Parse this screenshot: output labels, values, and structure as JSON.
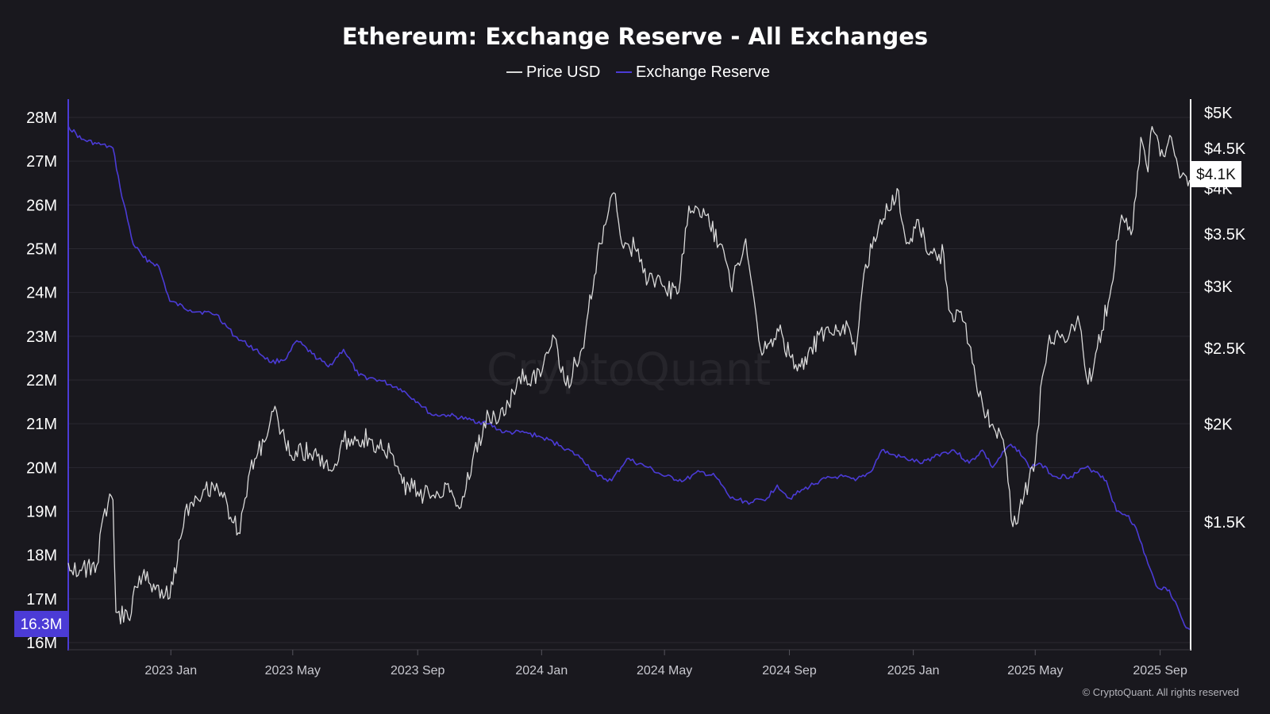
{
  "chart_data": {
    "type": "line",
    "title": "Ethereum: Exchange Reserve - All Exchanges",
    "legend": [
      {
        "name": "Price USD",
        "color": "#d9d9d9"
      },
      {
        "name": "Exchange Reserve",
        "color": "#4b3bd6"
      }
    ],
    "legend_position": "top-center",
    "grid": true,
    "x_axis": {
      "start": "2022-09-22",
      "end": "2025-10-01",
      "ticks": [
        {
          "date": "2023-01-01",
          "label": "2023 Jan"
        },
        {
          "date": "2023-05-01",
          "label": "2023 May"
        },
        {
          "date": "2023-09-01",
          "label": "2023 Sep"
        },
        {
          "date": "2024-01-01",
          "label": "2024 Jan"
        },
        {
          "date": "2024-05-01",
          "label": "2024 May"
        },
        {
          "date": "2024-09-01",
          "label": "2024 Sep"
        },
        {
          "date": "2025-01-01",
          "label": "2025 Jan"
        },
        {
          "date": "2025-05-01",
          "label": "2025 May"
        },
        {
          "date": "2025-09-01",
          "label": "2025 Sep"
        }
      ]
    },
    "y_left": {
      "series": "Exchange Reserve",
      "min": 16000000,
      "max": 28000000,
      "ticks": [
        {
          "value": 16000000,
          "label": "16M"
        },
        {
          "value": 17000000,
          "label": "17M"
        },
        {
          "value": 18000000,
          "label": "18M"
        },
        {
          "value": 19000000,
          "label": "19M"
        },
        {
          "value": 20000000,
          "label": "20M"
        },
        {
          "value": 21000000,
          "label": "21M"
        },
        {
          "value": 22000000,
          "label": "22M"
        },
        {
          "value": 23000000,
          "label": "23M"
        },
        {
          "value": 24000000,
          "label": "24M"
        },
        {
          "value": 25000000,
          "label": "25M"
        },
        {
          "value": 26000000,
          "label": "26M"
        },
        {
          "value": 27000000,
          "label": "27M"
        },
        {
          "value": 28000000,
          "label": "28M"
        }
      ],
      "current_label": "16.3M"
    },
    "y_right": {
      "series": "Price USD",
      "scale": "log",
      "min": 1000,
      "max": 5000,
      "ticks": [
        {
          "value": 1500,
          "label": "$1.5K"
        },
        {
          "value": 2000,
          "label": "$2K"
        },
        {
          "value": 2500,
          "label": "$2.5K"
        },
        {
          "value": 3000,
          "label": "$3K"
        },
        {
          "value": 3500,
          "label": "$3.5K"
        },
        {
          "value": 4000,
          "label": "$4K"
        },
        {
          "value": 4500,
          "label": "$4.5K"
        },
        {
          "value": 5000,
          "label": "$5K"
        }
      ],
      "current_label": "$4.1K"
    },
    "series": [
      {
        "name": "Exchange Reserve",
        "axis": "left",
        "color": "#4b3bd6",
        "points": [
          [
            "2022-09-22",
            27800000
          ],
          [
            "2022-10-05",
            27500000
          ],
          [
            "2022-10-20",
            27400000
          ],
          [
            "2022-11-05",
            27300000
          ],
          [
            "2022-11-12",
            26400000
          ],
          [
            "2022-11-25",
            25100000
          ],
          [
            "2022-12-05",
            24800000
          ],
          [
            "2022-12-20",
            24600000
          ],
          [
            "2022-12-31",
            23800000
          ],
          [
            "2023-01-20",
            23600000
          ],
          [
            "2023-02-15",
            23500000
          ],
          [
            "2023-03-05",
            23000000
          ],
          [
            "2023-03-25",
            22700000
          ],
          [
            "2023-04-10",
            22400000
          ],
          [
            "2023-04-25",
            22500000
          ],
          [
            "2023-05-05",
            22900000
          ],
          [
            "2023-05-20",
            22600000
          ],
          [
            "2023-06-05",
            22300000
          ],
          [
            "2023-06-20",
            22700000
          ],
          [
            "2023-07-05",
            22100000
          ],
          [
            "2023-07-25",
            22000000
          ],
          [
            "2023-08-15",
            21800000
          ],
          [
            "2023-09-01",
            21500000
          ],
          [
            "2023-09-15",
            21200000
          ],
          [
            "2023-10-01",
            21200000
          ],
          [
            "2023-10-20",
            21100000
          ],
          [
            "2023-11-10",
            21000000
          ],
          [
            "2023-11-25",
            20800000
          ],
          [
            "2023-12-15",
            20800000
          ],
          [
            "2023-12-31",
            20700000
          ],
          [
            "2024-01-20",
            20500000
          ],
          [
            "2024-02-10",
            20200000
          ],
          [
            "2024-02-25",
            19800000
          ],
          [
            "2024-03-10",
            19700000
          ],
          [
            "2024-03-25",
            20200000
          ],
          [
            "2024-04-15",
            20000000
          ],
          [
            "2024-05-01",
            19800000
          ],
          [
            "2024-05-20",
            19700000
          ],
          [
            "2024-06-05",
            19900000
          ],
          [
            "2024-06-20",
            19800000
          ],
          [
            "2024-07-05",
            19300000
          ],
          [
            "2024-07-25",
            19200000
          ],
          [
            "2024-08-10",
            19300000
          ],
          [
            "2024-08-20",
            19600000
          ],
          [
            "2024-09-01",
            19300000
          ],
          [
            "2024-09-15",
            19500000
          ],
          [
            "2024-10-01",
            19700000
          ],
          [
            "2024-10-20",
            19800000
          ],
          [
            "2024-11-05",
            19700000
          ],
          [
            "2024-11-20",
            19900000
          ],
          [
            "2024-12-01",
            20400000
          ],
          [
            "2024-12-10",
            20300000
          ],
          [
            "2024-12-25",
            20200000
          ],
          [
            "2025-01-10",
            20100000
          ],
          [
            "2025-01-25",
            20300000
          ],
          [
            "2025-02-10",
            20400000
          ],
          [
            "2025-02-25",
            20100000
          ],
          [
            "2025-03-10",
            20400000
          ],
          [
            "2025-03-20",
            20000000
          ],
          [
            "2025-04-05",
            20500000
          ],
          [
            "2025-04-15",
            20400000
          ],
          [
            "2025-04-25",
            20000000
          ],
          [
            "2025-05-05",
            20100000
          ],
          [
            "2025-05-20",
            19800000
          ],
          [
            "2025-06-05",
            19800000
          ],
          [
            "2025-06-20",
            20000000
          ],
          [
            "2025-07-01",
            19900000
          ],
          [
            "2025-07-10",
            19700000
          ],
          [
            "2025-07-20",
            19000000
          ],
          [
            "2025-08-01",
            18900000
          ],
          [
            "2025-08-10",
            18500000
          ],
          [
            "2025-08-20",
            17800000
          ],
          [
            "2025-08-28",
            17300000
          ],
          [
            "2025-09-10",
            17200000
          ],
          [
            "2025-09-20",
            16700000
          ],
          [
            "2025-09-25",
            16400000
          ],
          [
            "2025-09-30",
            16300000
          ]
        ]
      },
      {
        "name": "Price USD",
        "axis": "right",
        "color": "#d9d9d9",
        "points": [
          [
            "2022-09-22",
            1330
          ],
          [
            "2022-10-05",
            1300
          ],
          [
            "2022-10-20",
            1320
          ],
          [
            "2022-10-28",
            1560
          ],
          [
            "2022-11-05",
            1600
          ],
          [
            "2022-11-08",
            1150
          ],
          [
            "2022-11-20",
            1130
          ],
          [
            "2022-12-01",
            1280
          ],
          [
            "2022-12-15",
            1250
          ],
          [
            "2022-12-31",
            1200
          ],
          [
            "2023-01-15",
            1550
          ],
          [
            "2023-01-25",
            1620
          ],
          [
            "2023-02-15",
            1680
          ],
          [
            "2023-03-10",
            1450
          ],
          [
            "2023-03-20",
            1750
          ],
          [
            "2023-04-15",
            2080
          ],
          [
            "2023-04-25",
            1850
          ],
          [
            "2023-05-10",
            1850
          ],
          [
            "2023-05-25",
            1820
          ],
          [
            "2023-06-10",
            1750
          ],
          [
            "2023-06-20",
            1900
          ],
          [
            "2023-07-01",
            1930
          ],
          [
            "2023-07-15",
            1920
          ],
          [
            "2023-07-25",
            1860
          ],
          [
            "2023-08-05",
            1840
          ],
          [
            "2023-08-17",
            1680
          ],
          [
            "2023-09-01",
            1640
          ],
          [
            "2023-09-15",
            1620
          ],
          [
            "2023-10-01",
            1680
          ],
          [
            "2023-10-12",
            1560
          ],
          [
            "2023-10-25",
            1800
          ],
          [
            "2023-11-10",
            2050
          ],
          [
            "2023-11-25",
            2050
          ],
          [
            "2023-12-10",
            2300
          ],
          [
            "2023-12-31",
            2300
          ],
          [
            "2024-01-12",
            2600
          ],
          [
            "2024-01-25",
            2240
          ],
          [
            "2024-02-10",
            2500
          ],
          [
            "2024-02-28",
            3400
          ],
          [
            "2024-03-12",
            3950
          ],
          [
            "2024-03-20",
            3400
          ],
          [
            "2024-04-05",
            3350
          ],
          [
            "2024-04-15",
            3050
          ],
          [
            "2024-05-01",
            3000
          ],
          [
            "2024-05-15",
            2950
          ],
          [
            "2024-05-25",
            3800
          ],
          [
            "2024-06-10",
            3700
          ],
          [
            "2024-06-25",
            3400
          ],
          [
            "2024-07-05",
            3000
          ],
          [
            "2024-07-20",
            3450
          ],
          [
            "2024-08-05",
            2450
          ],
          [
            "2024-08-20",
            2650
          ],
          [
            "2024-09-01",
            2450
          ],
          [
            "2024-09-15",
            2350
          ],
          [
            "2024-09-30",
            2600
          ],
          [
            "2024-10-15",
            2600
          ],
          [
            "2024-10-30",
            2650
          ],
          [
            "2024-11-05",
            2450
          ],
          [
            "2024-11-15",
            3200
          ],
          [
            "2024-12-01",
            3600
          ],
          [
            "2024-12-16",
            4000
          ],
          [
            "2024-12-25",
            3400
          ],
          [
            "2025-01-06",
            3650
          ],
          [
            "2025-01-15",
            3300
          ],
          [
            "2025-01-31",
            3300
          ],
          [
            "2025-02-05",
            2800
          ],
          [
            "2025-02-20",
            2700
          ],
          [
            "2025-03-05",
            2200
          ],
          [
            "2025-03-20",
            2000
          ],
          [
            "2025-04-01",
            1850
          ],
          [
            "2025-04-09",
            1480
          ],
          [
            "2025-04-20",
            1620
          ],
          [
            "2025-05-01",
            1800
          ],
          [
            "2025-05-08",
            2300
          ],
          [
            "2025-05-15",
            2600
          ],
          [
            "2025-06-01",
            2550
          ],
          [
            "2025-06-12",
            2750
          ],
          [
            "2025-06-22",
            2250
          ],
          [
            "2025-07-01",
            2500
          ],
          [
            "2025-07-15",
            3000
          ],
          [
            "2025-07-25",
            3700
          ],
          [
            "2025-08-05",
            3550
          ],
          [
            "2025-08-13",
            4650
          ],
          [
            "2025-08-20",
            4200
          ],
          [
            "2025-08-24",
            4800
          ],
          [
            "2025-09-01",
            4400
          ],
          [
            "2025-09-12",
            4650
          ],
          [
            "2025-09-22",
            4150
          ],
          [
            "2025-09-30",
            4100
          ]
        ]
      }
    ]
  },
  "watermark": "CryptoQuant",
  "credit": "© CryptoQuant. All rights reserved"
}
